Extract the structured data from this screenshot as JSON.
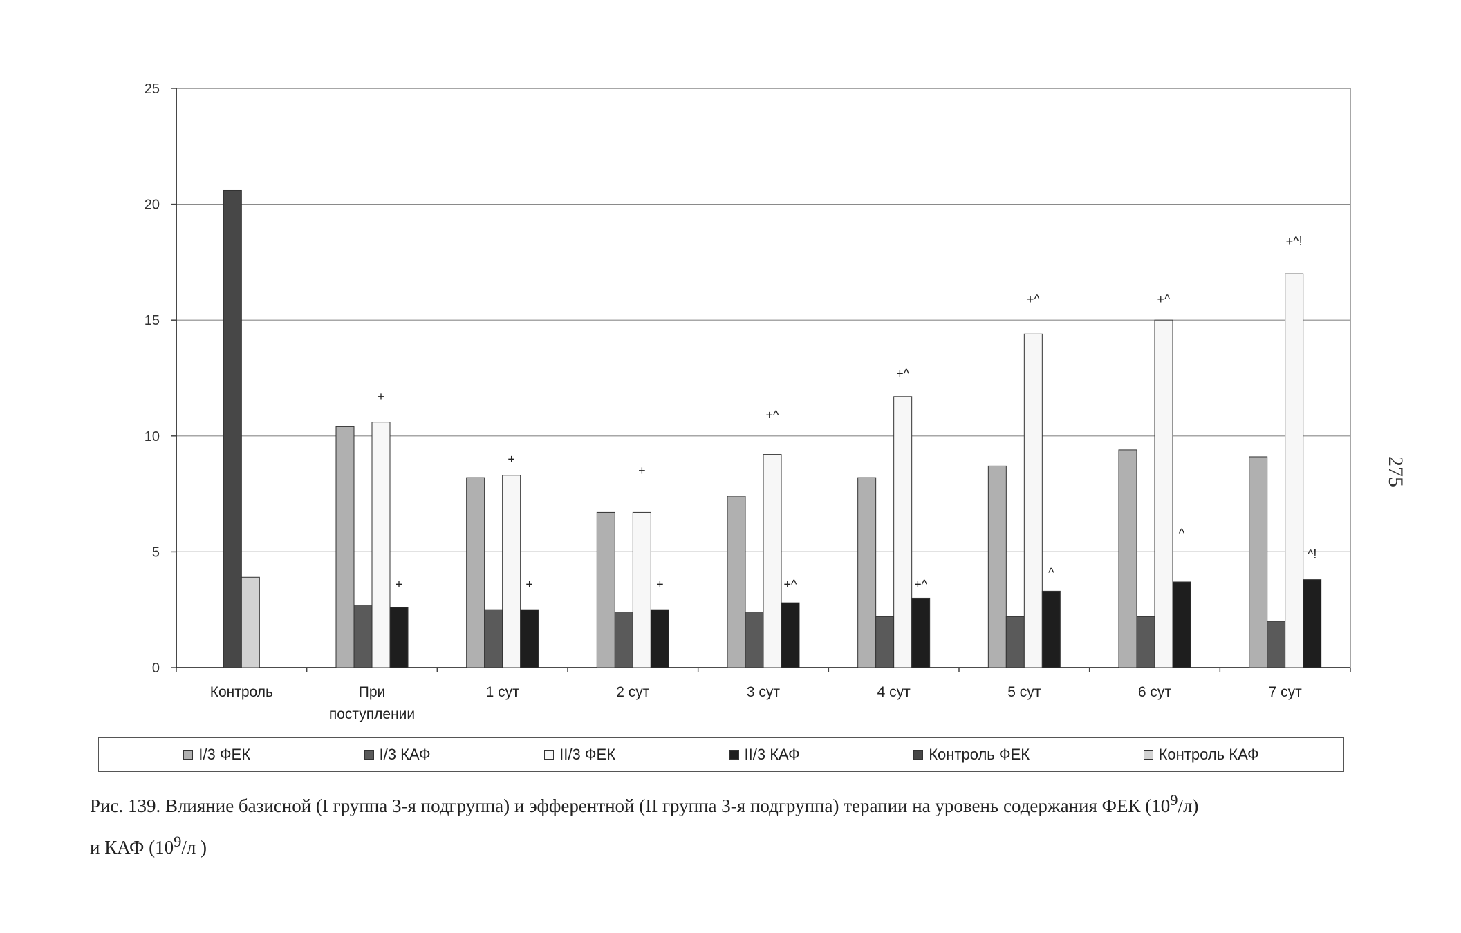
{
  "page_number": "275",
  "caption": {
    "line1_pre": "Рис. 139. Влияние базисной (I группа 3-я подгруппа) и эфферентной (II группа 3-я подгруппа) терапии на уровень содержания ФЕК (10",
    "line1_sup": "9",
    "line1_post": "/л)",
    "line2_pre": "и КАФ (10",
    "line2_sup": "9",
    "line2_post": "/л )"
  },
  "chart_data": {
    "type": "bar",
    "title": "",
    "xlabel": "",
    "ylabel": "",
    "ylim": [
      0,
      25
    ],
    "yticks": [
      0,
      5,
      10,
      15,
      20,
      25
    ],
    "grid": true,
    "legend_position": "bottom",
    "categories": [
      "Контроль",
      "При поступлении",
      "1 сут",
      "2 сут",
      "3 сут",
      "4 сут",
      "5 сут",
      "6 сут",
      "7 сут"
    ],
    "category_lines": [
      [
        "Контроль"
      ],
      [
        "При",
        "поступлении"
      ],
      [
        "1 сут"
      ],
      [
        "2 сут"
      ],
      [
        "3 сут"
      ],
      [
        "4 сут"
      ],
      [
        "5 сут"
      ],
      [
        "6 сут"
      ],
      [
        "7 сут"
      ]
    ],
    "series": [
      {
        "name": "I/3 ФЕК",
        "color": "#b0b0b0",
        "values": [
          null,
          10.4,
          8.2,
          6.7,
          7.4,
          8.2,
          8.7,
          9.4,
          9.1
        ]
      },
      {
        "name": "I/3 КАФ",
        "color": "#5a5a5a",
        "values": [
          null,
          2.7,
          2.5,
          2.4,
          2.4,
          2.2,
          2.2,
          2.2,
          2.0
        ]
      },
      {
        "name": "II/3 ФЕК",
        "color": "#f7f7f7",
        "values": [
          null,
          10.6,
          8.3,
          6.7,
          9.2,
          11.7,
          14.4,
          15.0,
          17.0
        ]
      },
      {
        "name": "II/3 КАФ",
        "color": "#1e1e1e",
        "values": [
          null,
          2.6,
          2.5,
          2.5,
          2.8,
          3.0,
          3.3,
          3.7,
          3.8
        ]
      },
      {
        "name": "Контроль ФЕК",
        "color": "#474747",
        "values": [
          20.6,
          null,
          null,
          null,
          null,
          null,
          null,
          null,
          null
        ]
      },
      {
        "name": "Контроль КАФ",
        "color": "#d2d2d2",
        "values": [
          3.9,
          null,
          null,
          null,
          null,
          null,
          null,
          null,
          null
        ]
      }
    ],
    "annotations": [
      {
        "category": "При поступлении",
        "series": "II/3 ФЕК",
        "text": "+",
        "y": 11.7
      },
      {
        "category": "При поступлении",
        "series": "II/3 КАФ",
        "text": "+",
        "y": 3.6
      },
      {
        "category": "1 сут",
        "series": "II/3 ФЕК",
        "text": "+",
        "y": 9.0
      },
      {
        "category": "1 сут",
        "series": "II/3 КАФ",
        "text": "+",
        "y": 3.6
      },
      {
        "category": "2 сут",
        "series": "II/3 ФЕК",
        "text": "+",
        "y": 8.5
      },
      {
        "category": "2 сут",
        "series": "II/3 КАФ",
        "text": "+",
        "y": 3.6
      },
      {
        "category": "3 сут",
        "series": "II/3 ФЕК",
        "text": "+^",
        "y": 10.9
      },
      {
        "category": "3 сут",
        "series": "II/3 КАФ",
        "text": "+^",
        "y": 3.6
      },
      {
        "category": "4 сут",
        "series": "II/3 ФЕК",
        "text": "+^",
        "y": 12.7
      },
      {
        "category": "4 сут",
        "series": "II/3 КАФ",
        "text": "+^",
        "y": 3.6
      },
      {
        "category": "5 сут",
        "series": "II/3 ФЕК",
        "text": "+^",
        "y": 15.9
      },
      {
        "category": "5 сут",
        "series": "II/3 КАФ",
        "text": "^",
        "y": 4.1
      },
      {
        "category": "6 сут",
        "series": "II/3 ФЕК",
        "text": "+^",
        "y": 15.9
      },
      {
        "category": "6 сут",
        "series": "II/3 КАФ",
        "text": "^",
        "y": 5.8
      },
      {
        "category": "7 сут",
        "series": "II/3 ФЕК",
        "text": "+^!",
        "y": 18.4
      },
      {
        "category": "7 сут",
        "series": "II/3 КАФ",
        "text": "^!",
        "y": 4.9
      }
    ]
  }
}
